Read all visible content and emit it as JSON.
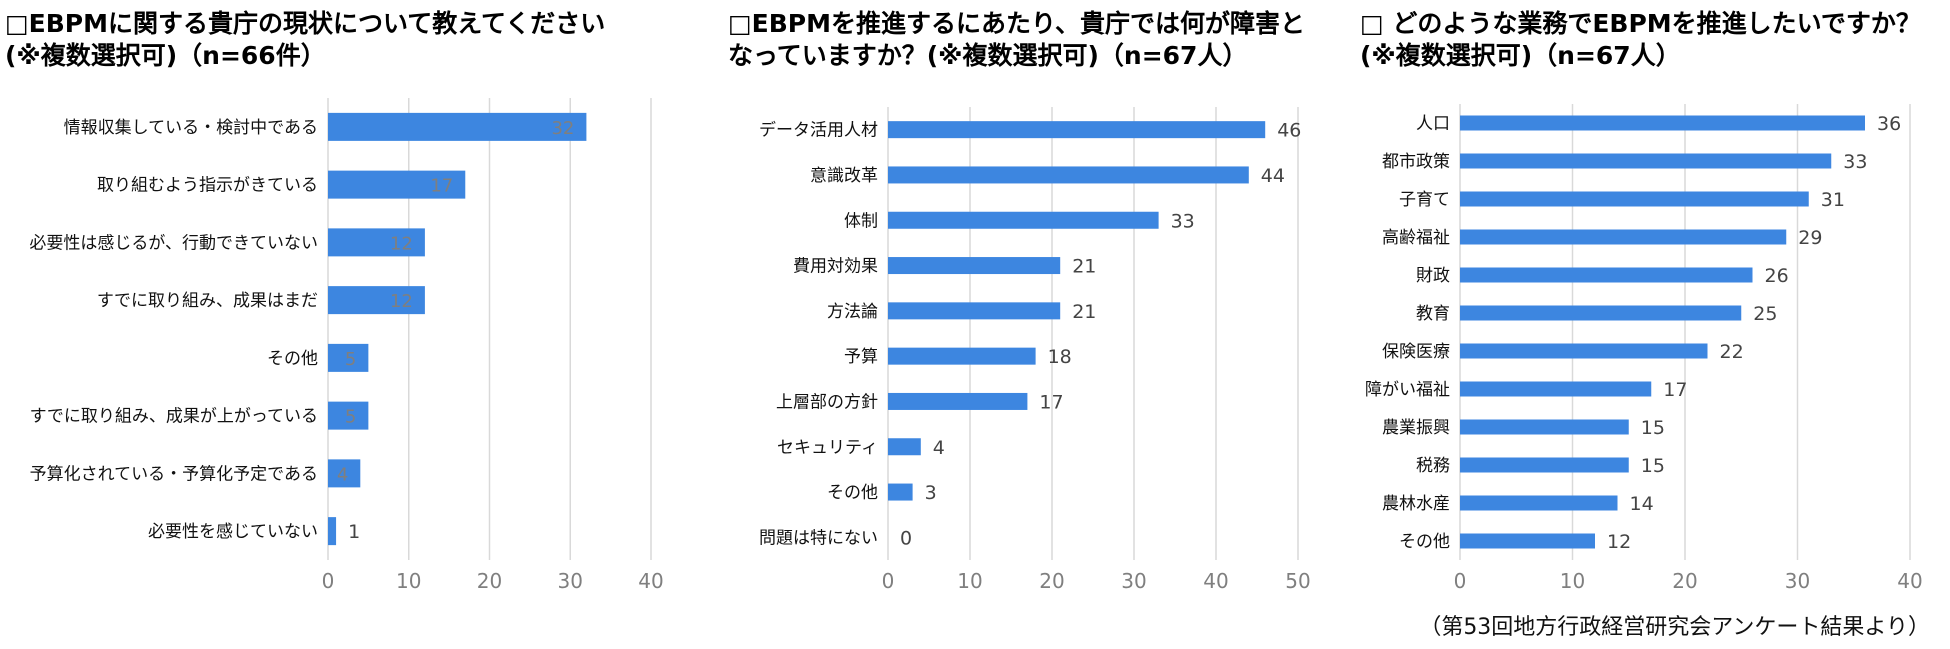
{
  "colors": {
    "bar": "#3d86e0",
    "grid": "#d9d9d9",
    "axis_text": "#7f7f7f",
    "label_dark": "#444444"
  },
  "source_note": "（第53回地方行政経営研究会アンケート結果より）",
  "chart_data": [
    {
      "type": "bar",
      "orientation": "horizontal",
      "title_lines": [
        "□EBPMに関する貴庁の現状について教えてください",
        "(※複数選択可)（n=66件）"
      ],
      "categories": [
        "情報収集している・検討中である",
        "取り組むよう指示がきている",
        "必要性は感じるが、行動できていない",
        "すでに取り組み、成果はまだ",
        "その他",
        "すでに取り組み、成果が上がっている",
        "予算化されている・予算化予定である",
        "必要性を感じていない"
      ],
      "values": [
        32,
        17,
        12,
        12,
        5,
        5,
        4,
        1
      ],
      "xlim": [
        0,
        40
      ],
      "ticks": [
        0,
        10,
        20,
        30,
        40
      ],
      "labels_inside": true
    },
    {
      "type": "bar",
      "orientation": "horizontal",
      "title_lines": [
        "□EBPMを推進するにあたり、貴庁では何が障害と",
        "なっていますか？(※複数選択可)（n=67人）"
      ],
      "categories": [
        "データ活用人材",
        "意識改革",
        "体制",
        "費用対効果",
        "方法論",
        "予算",
        "上層部の方針",
        "セキュリティ",
        "その他",
        "問題は特にない"
      ],
      "values": [
        46,
        44,
        33,
        21,
        21,
        18,
        17,
        4,
        3,
        0
      ],
      "xlim": [
        0,
        50
      ],
      "ticks": [
        0,
        10,
        20,
        30,
        40,
        50
      ],
      "labels_inside": false
    },
    {
      "type": "bar",
      "orientation": "horizontal",
      "title_lines": [
        "□ どのような業務でEBPMを推進したいですか？",
        "(※複数選択可)（n=67人）"
      ],
      "categories": [
        "人口",
        "都市政策",
        "子育て",
        "高齢福祉",
        "財政",
        "教育",
        "保険医療",
        "障がい福祉",
        "農業振興",
        "税務",
        "農林水産",
        "その他"
      ],
      "values": [
        36,
        33,
        31,
        29,
        26,
        25,
        22,
        17,
        15,
        15,
        14,
        12
      ],
      "xlim": [
        0,
        40
      ],
      "ticks": [
        0,
        10,
        20,
        30,
        40
      ],
      "labels_inside": false
    }
  ]
}
